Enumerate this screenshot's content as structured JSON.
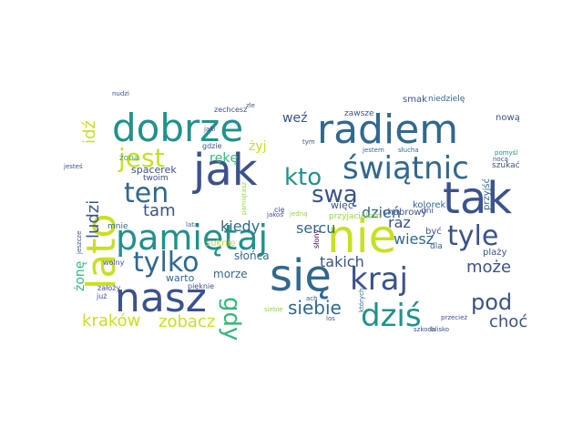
{
  "palette": {
    "dark_purple": "#440154",
    "indigo": "#3b528b",
    "blue": "#31688e",
    "teal": "#21918c",
    "green": "#35b779",
    "lime": "#90d743",
    "yellow": "#c8e020"
  },
  "words": [
    {
      "text": "radiem",
      "color": "#31688e"
    },
    {
      "text": "dobrze",
      "color": "#21918c"
    },
    {
      "text": "jak",
      "color": "#3b528b"
    },
    {
      "text": "tak",
      "color": "#3b528b"
    },
    {
      "text": "nie",
      "color": "#c8e020"
    },
    {
      "text": "się",
      "color": "#31688e"
    },
    {
      "text": "nasz",
      "color": "#3b528b"
    },
    {
      "text": "lato",
      "color": "#c8e020"
    },
    {
      "text": "pamiętaj",
      "color": "#21918c"
    },
    {
      "text": "świątnic",
      "color": "#31688e"
    },
    {
      "text": "kraj",
      "color": "#3b528b"
    },
    {
      "text": "dziś",
      "color": "#21918c"
    },
    {
      "text": "tylko",
      "color": "#31688e"
    },
    {
      "text": "tyle",
      "color": "#3b528b"
    },
    {
      "text": "jest",
      "color": "#c8e020"
    },
    {
      "text": "ten",
      "color": "#31688e"
    },
    {
      "text": "kto",
      "color": "#21918c"
    },
    {
      "text": "swą",
      "color": "#3b528b"
    },
    {
      "text": "pod",
      "color": "#3b528b"
    },
    {
      "text": "gdy",
      "color": "#35b779"
    },
    {
      "text": "siebie",
      "color": "#31688e"
    },
    {
      "text": "może",
      "color": "#3b528b"
    },
    {
      "text": "kraków",
      "color": "#c8e020"
    },
    {
      "text": "zobacz",
      "color": "#c8e020"
    },
    {
      "text": "choć",
      "color": "#3b528b"
    },
    {
      "text": "ludzi",
      "color": "#3b528b"
    },
    {
      "text": "idź",
      "color": "#c8e020"
    },
    {
      "text": "tam",
      "color": "#3b528b"
    },
    {
      "text": "kiedy",
      "color": "#31688e"
    },
    {
      "text": "sercu",
      "color": "#31688e"
    },
    {
      "text": "raz",
      "color": "#3b528b"
    },
    {
      "text": "dzień",
      "color": "#31688e"
    },
    {
      "text": "wiesz",
      "color": "#31688e"
    },
    {
      "text": "takich",
      "color": "#3b528b"
    },
    {
      "text": "żonę",
      "color": "#35b779"
    },
    {
      "text": "weź",
      "color": "#3b528b"
    },
    {
      "text": "żyj",
      "color": "#c8e020"
    },
    {
      "text": "rękę",
      "color": "#35b779"
    },
    {
      "text": "spacerek",
      "color": "#3b528b"
    },
    {
      "text": "słońca",
      "color": "#31688e"
    },
    {
      "text": "morze",
      "color": "#31688e"
    },
    {
      "text": "warto",
      "color": "#31688e"
    },
    {
      "text": "suknię",
      "color": "#c8e020"
    },
    {
      "text": "więc",
      "color": "#3b528b"
    },
    {
      "text": "chabrowy",
      "color": "#3b528b"
    },
    {
      "text": "kolorek",
      "color": "#31688e"
    },
    {
      "text": "dni",
      "color": "#3b528b"
    },
    {
      "text": "być",
      "color": "#3b528b"
    },
    {
      "text": "dla",
      "color": "#31688e"
    },
    {
      "text": "plaży",
      "color": "#3b528b"
    },
    {
      "text": "przyjść",
      "color": "#31688e"
    },
    {
      "text": "nową",
      "color": "#3b528b"
    },
    {
      "text": "smak",
      "color": "#3b528b"
    },
    {
      "text": "niedzielę",
      "color": "#31688e"
    },
    {
      "text": "szukać",
      "color": "#3b528b"
    },
    {
      "text": "zawsze",
      "color": "#3b528b"
    },
    {
      "text": "jestem",
      "color": "#31688e"
    },
    {
      "text": "słucha",
      "color": "#31688e"
    },
    {
      "text": "pomyśl",
      "color": "#21918c"
    },
    {
      "text": "nocą",
      "color": "#3b528b"
    },
    {
      "text": "żona",
      "color": "#35b779"
    },
    {
      "text": "twoim",
      "color": "#3b528b"
    },
    {
      "text": "zechcesz",
      "color": "#3b528b"
    },
    {
      "text": "nudzi",
      "color": "#3b528b"
    },
    {
      "text": "jesteś",
      "color": "#3b528b"
    },
    {
      "text": "jaki",
      "color": "#3b528b"
    },
    {
      "text": "gdzie",
      "color": "#3b528b"
    },
    {
      "text": "tym",
      "color": "#3b528b"
    },
    {
      "text": "mnie",
      "color": "#31688e"
    },
    {
      "text": "wolny",
      "color": "#3b528b"
    },
    {
      "text": "założy",
      "color": "#3b528b"
    },
    {
      "text": "już",
      "color": "#3b528b"
    },
    {
      "text": "pięknie",
      "color": "#3b528b"
    },
    {
      "text": "jeszcze",
      "color": "#3b528b"
    },
    {
      "text": "słony",
      "color": "#440154"
    },
    {
      "text": "których",
      "color": "#31688e"
    },
    {
      "text": "los",
      "color": "#3b528b"
    },
    {
      "text": "ach",
      "color": "#3b528b"
    },
    {
      "text": "szkoda",
      "color": "#3b528b"
    },
    {
      "text": "blisko",
      "color": "#3b528b"
    },
    {
      "text": "przecież",
      "color": "#3b528b"
    },
    {
      "text": "cię",
      "color": "#3b528b"
    },
    {
      "text": "jedną",
      "color": "#90d743"
    },
    {
      "text": "przyjacielem",
      "color": "#90d743"
    },
    {
      "text": "lata",
      "color": "#31688e"
    },
    {
      "text": "zle",
      "color": "#3b528b"
    },
    {
      "text": "jakoś",
      "color": "#3b528b"
    },
    {
      "text": "siebie",
      "color": "#90d743"
    },
    {
      "text": "pamiętasz",
      "color": "#90d743"
    }
  ]
}
